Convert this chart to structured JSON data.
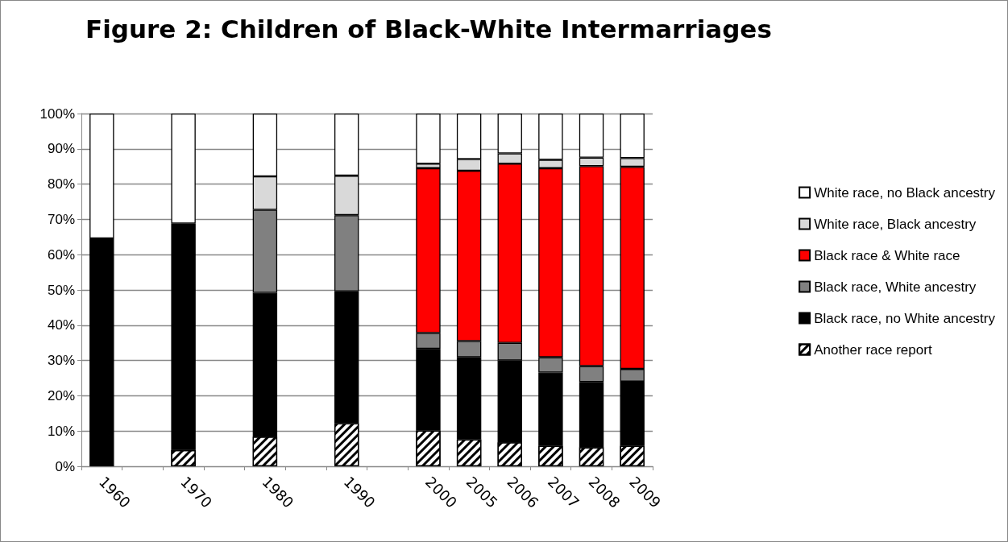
{
  "chart_data": {
    "type": "bar",
    "title": "Figure 2: Children of Black-White Intermarriages",
    "stacked": true,
    "categories": [
      "1960",
      null,
      "1970",
      null,
      "1980",
      null,
      "1990",
      null,
      "2000",
      "2005",
      "2006",
      "2007",
      "2008",
      "2009"
    ],
    "series": [
      {
        "name": "Another race report",
        "color": "#ffffff",
        "values": [
          null,
          null,
          4.6,
          null,
          8.4,
          null,
          12.2,
          null,
          10.1,
          7.6,
          6.8,
          5.8,
          5.4,
          5.8
        ]
      },
      {
        "name": "Black race, no White ancestry",
        "color": "#000000",
        "values": [
          64.6,
          null,
          64.2,
          null,
          40.8,
          null,
          37.4,
          null,
          23.2,
          23.3,
          23.2,
          20.8,
          18.5,
          18.2
        ]
      },
      {
        "name": "Black race, White ancestry",
        "color": "#808080",
        "values": [
          null,
          null,
          null,
          null,
          23.5,
          null,
          21.6,
          null,
          4.5,
          4.6,
          5.0,
          4.3,
          4.5,
          3.6
        ]
      },
      {
        "name": "Black race & White race",
        "color": "#ff0000",
        "values": [
          null,
          null,
          null,
          null,
          null,
          null,
          null,
          null,
          46.7,
          48.3,
          50.8,
          53.6,
          56.7,
          57.3
        ]
      },
      {
        "name": "White race, Black ancestry",
        "color": "#d9d9d9",
        "values": [
          null,
          null,
          null,
          null,
          9.5,
          null,
          11.2,
          null,
          1.3,
          3.3,
          2.9,
          2.4,
          2.4,
          2.5
        ]
      },
      {
        "name": "White race, no Black ancestry",
        "color": "#ffffff",
        "values": [
          35.4,
          null,
          31.2,
          null,
          17.8,
          null,
          17.6,
          null,
          14.2,
          12.9,
          11.3,
          13.1,
          12.5,
          12.6
        ]
      }
    ],
    "ylim": [
      0,
      100
    ],
    "yticks": [
      {
        "value": 0,
        "label": "0%"
      },
      {
        "value": 10,
        "label": "10%"
      },
      {
        "value": 20,
        "label": "20%"
      },
      {
        "value": 30,
        "label": "30%"
      },
      {
        "value": 40,
        "label": "40%"
      },
      {
        "value": 50,
        "label": "50%"
      },
      {
        "value": 60,
        "label": "60%"
      },
      {
        "value": 70,
        "label": "70%"
      },
      {
        "value": 80,
        "label": "80%"
      },
      {
        "value": 90,
        "label": "90%"
      },
      {
        "value": 100,
        "label": "100%"
      }
    ],
    "grid": "y",
    "legend": "right"
  }
}
